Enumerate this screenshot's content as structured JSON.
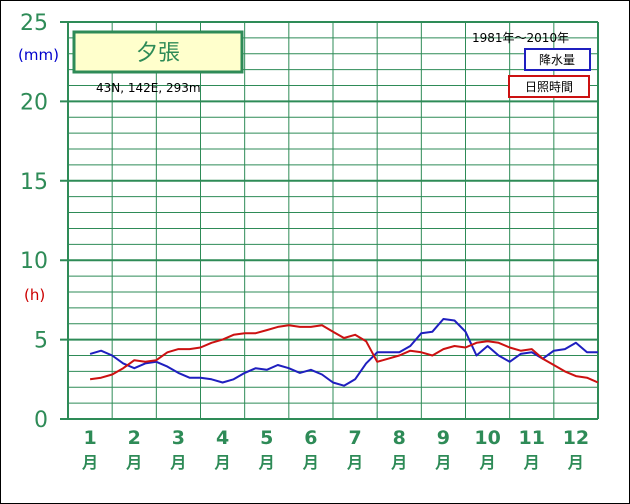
{
  "chart_data": {
    "type": "line",
    "title": "夕張",
    "location": "43N, 142E, 293m",
    "period": "1981年～2010年",
    "ylim": [
      0,
      25
    ],
    "yticks": [
      "0",
      "5",
      "10",
      "15",
      "20",
      "25"
    ],
    "unit_precip": "(mm)",
    "unit_sun": "(h)",
    "months": [
      {
        "num": "1",
        "suffix": "月"
      },
      {
        "num": "2",
        "suffix": "月"
      },
      {
        "num": "3",
        "suffix": "月"
      },
      {
        "num": "4",
        "suffix": "月"
      },
      {
        "num": "5",
        "suffix": "月"
      },
      {
        "num": "6",
        "suffix": "月"
      },
      {
        "num": "7",
        "suffix": "月"
      },
      {
        "num": "8",
        "suffix": "月"
      },
      {
        "num": "9",
        "suffix": "月"
      },
      {
        "num": "10",
        "suffix": "月"
      },
      {
        "num": "11",
        "suffix": "月"
      },
      {
        "num": "12",
        "suffix": "月"
      }
    ],
    "grid": true,
    "legend_position": "top-right",
    "series": [
      {
        "name": "降水量",
        "color": "#1f1fbf",
        "x": [
          1.0,
          1.25,
          1.5,
          1.75,
          2.0,
          2.25,
          2.5,
          2.75,
          3.0,
          3.25,
          3.5,
          3.75,
          4.0,
          4.25,
          4.5,
          4.75,
          5.0,
          5.25,
          5.5,
          5.75,
          6.0,
          6.25,
          6.5,
          6.75,
          7.0,
          7.25,
          7.5,
          7.75,
          8.0,
          8.25,
          8.5,
          8.75,
          9.0,
          9.25,
          9.5,
          9.75,
          10.0,
          10.25,
          10.5,
          10.75,
          11.0,
          11.25,
          11.5,
          11.75,
          12.0,
          12.25,
          12.5
        ],
        "values": [
          4.1,
          4.3,
          4.0,
          3.5,
          3.2,
          3.5,
          3.6,
          3.3,
          2.9,
          2.6,
          2.6,
          2.5,
          2.3,
          2.5,
          2.9,
          3.2,
          3.1,
          3.4,
          3.2,
          2.9,
          3.1,
          2.8,
          2.3,
          2.1,
          2.5,
          3.5,
          4.2,
          4.2,
          4.2,
          4.6,
          5.4,
          5.5,
          6.3,
          6.2,
          5.5,
          4.0,
          4.6,
          4.0,
          3.6,
          4.1,
          4.2,
          3.8,
          4.3,
          4.4,
          4.8,
          4.2,
          4.2
        ]
      },
      {
        "name": "日照時間",
        "color": "#cc1111",
        "x": [
          1.0,
          1.25,
          1.5,
          1.75,
          2.0,
          2.25,
          2.5,
          2.75,
          3.0,
          3.25,
          3.5,
          3.75,
          4.0,
          4.25,
          4.5,
          4.75,
          5.0,
          5.25,
          5.5,
          5.75,
          6.0,
          6.25,
          6.5,
          6.75,
          7.0,
          7.25,
          7.5,
          7.75,
          8.0,
          8.25,
          8.5,
          8.75,
          9.0,
          9.25,
          9.5,
          9.75,
          10.0,
          10.25,
          10.5,
          10.75,
          11.0,
          11.25,
          11.5,
          11.75,
          12.0,
          12.25,
          12.5
        ],
        "values": [
          2.5,
          2.6,
          2.8,
          3.2,
          3.7,
          3.6,
          3.7,
          4.2,
          4.4,
          4.4,
          4.5,
          4.8,
          5.0,
          5.3,
          5.4,
          5.4,
          5.6,
          5.8,
          5.9,
          5.8,
          5.8,
          5.9,
          5.5,
          5.1,
          5.3,
          4.9,
          3.6,
          3.8,
          4.0,
          4.3,
          4.2,
          4.0,
          4.4,
          4.6,
          4.5,
          4.8,
          4.9,
          4.8,
          4.5,
          4.3,
          4.4,
          3.8,
          3.4,
          3.0,
          2.7,
          2.6,
          2.3
        ]
      }
    ]
  }
}
